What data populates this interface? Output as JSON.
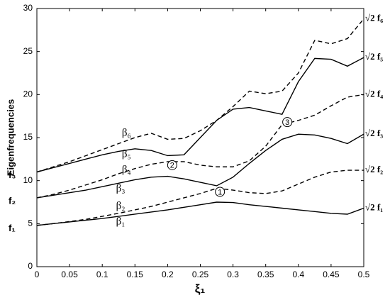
{
  "chart_data": {
    "type": "line",
    "ylabel": "Eigenfrequencies",
    "xlabel": "ξ₁",
    "x": [
      0,
      0.025,
      0.05,
      0.075,
      0.1,
      0.125,
      0.15,
      0.175,
      0.2,
      0.225,
      0.25,
      0.275,
      0.3,
      0.325,
      0.35,
      0.375,
      0.4,
      0.425,
      0.45,
      0.475,
      0.5
    ],
    "series": [
      {
        "name": "β₁",
        "color": "#000000",
        "dashed": false,
        "end_label": "√2 f₁",
        "label_at": [
          0.128,
          5.2
        ],
        "values": [
          4.8,
          5.0,
          5.2,
          5.4,
          5.6,
          5.85,
          6.1,
          6.35,
          6.6,
          6.9,
          7.2,
          7.5,
          7.45,
          7.2,
          7.0,
          6.8,
          6.6,
          6.4,
          6.2,
          6.1,
          6.8
        ]
      },
      {
        "name": "β₂",
        "color": "#000000",
        "dashed": true,
        "end_label": "√2 f₂",
        "label_at": [
          0.128,
          7.0
        ],
        "values": [
          4.8,
          5.0,
          5.25,
          5.5,
          5.85,
          6.2,
          6.6,
          7.0,
          7.5,
          8.0,
          8.5,
          9.1,
          8.9,
          8.6,
          8.5,
          8.8,
          9.6,
          10.4,
          11.0,
          11.2,
          11.2
        ]
      },
      {
        "name": "β₃",
        "color": "#000000",
        "dashed": false,
        "end_label": "√2 f₃",
        "label_at": [
          0.128,
          9.0
        ],
        "values": [
          8.0,
          8.3,
          8.6,
          8.9,
          9.3,
          9.7,
          10.1,
          10.4,
          10.5,
          10.2,
          9.8,
          9.4,
          10.4,
          12.0,
          13.5,
          14.8,
          15.4,
          15.3,
          14.9,
          14.3,
          15.4
        ]
      },
      {
        "name": "β₄",
        "color": "#000000",
        "dashed": true,
        "end_label": "√2 f₄",
        "label_at": [
          0.137,
          11.2
        ],
        "values": [
          8.0,
          8.4,
          8.9,
          9.5,
          10.1,
          10.8,
          11.4,
          11.9,
          12.2,
          12.2,
          11.8,
          11.6,
          11.6,
          12.3,
          14.0,
          16.5,
          17.0,
          17.6,
          18.7,
          19.7,
          20.0
        ]
      },
      {
        "name": "β₅",
        "color": "#000000",
        "dashed": false,
        "end_label": "√2 f₅",
        "label_at": [
          0.137,
          13.0
        ],
        "values": [
          11.0,
          11.5,
          12.0,
          12.5,
          13.0,
          13.4,
          13.7,
          13.5,
          12.9,
          13.0,
          15.0,
          17.0,
          18.3,
          18.5,
          18.1,
          17.7,
          21.5,
          24.2,
          24.1,
          23.3,
          24.3
        ]
      },
      {
        "name": "β₆",
        "color": "#000000",
        "dashed": true,
        "end_label": "√2 f₆",
        "label_at": [
          0.137,
          15.5
        ],
        "values": [
          11.0,
          11.6,
          12.2,
          12.9,
          13.6,
          14.3,
          15.0,
          15.5,
          14.8,
          14.9,
          15.8,
          17.0,
          18.6,
          20.4,
          20.1,
          20.4,
          22.5,
          26.3,
          25.9,
          26.5,
          28.8
        ]
      }
    ],
    "left_labels": [
      {
        "value": 4.8,
        "label": "f₁"
      },
      {
        "value": 8.0,
        "label": "f₂"
      },
      {
        "value": 11.0,
        "label": "f₃"
      }
    ],
    "crossings": [
      {
        "label": "1",
        "x": 0.28,
        "y": 8.7
      },
      {
        "label": "2",
        "x": 0.207,
        "y": 11.8
      },
      {
        "label": "3",
        "x": 0.383,
        "y": 16.8
      }
    ],
    "xlim": [
      0,
      0.5
    ],
    "ylim": [
      0,
      30
    ],
    "xticks": [
      0,
      0.05,
      0.1,
      0.15,
      0.2,
      0.25,
      0.3,
      0.35,
      0.4,
      0.45,
      0.5
    ],
    "yticks": [
      0,
      5,
      10,
      15,
      20,
      25,
      30
    ],
    "grid": false
  }
}
